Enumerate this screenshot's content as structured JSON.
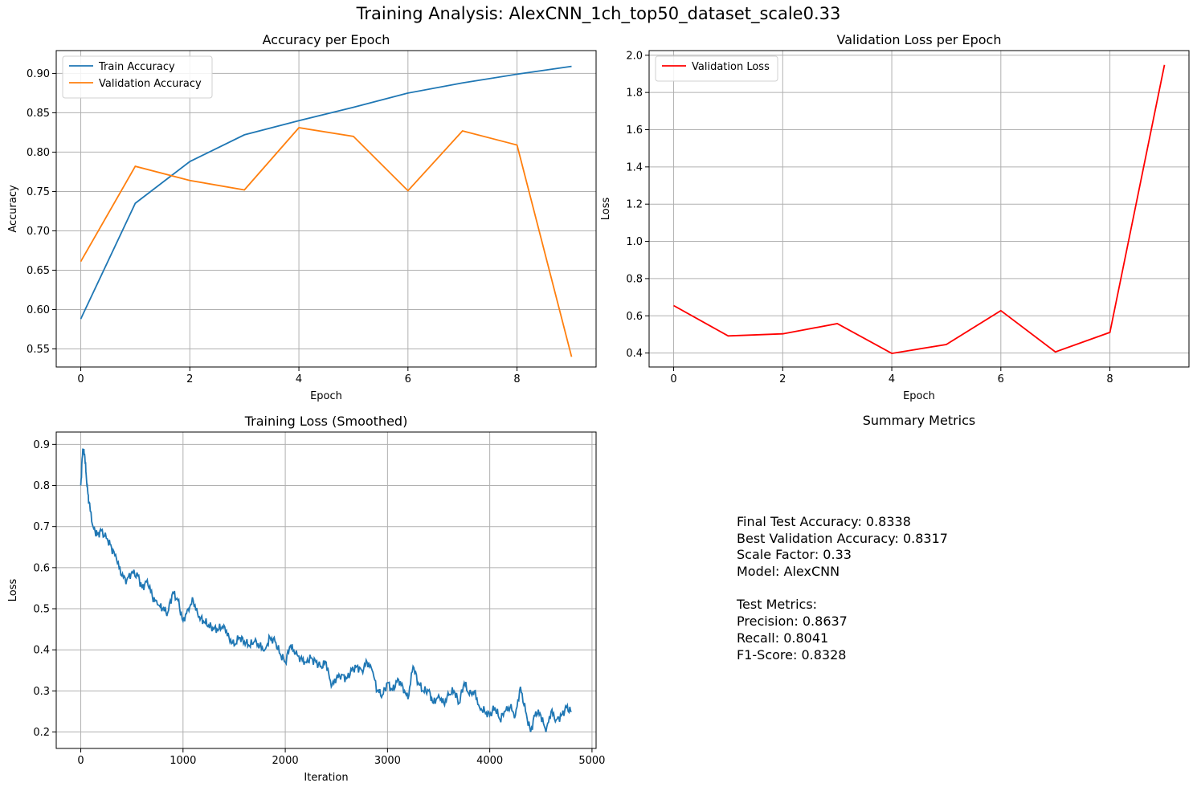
{
  "figure": {
    "title": "Training Analysis: AlexCNN_1ch_top50_dataset_scale0.33"
  },
  "summary": {
    "title": "Summary Metrics",
    "lines": [
      "Final Test Accuracy: 0.8338",
      "Best Validation Accuracy: 0.8317",
      "Scale Factor: 0.33",
      "Model: AlexCNN",
      "",
      "Test Metrics:",
      "Precision: 0.8637",
      "Recall: 0.8041",
      "F1-Score: 0.8328"
    ]
  },
  "chart_data": [
    {
      "type": "line",
      "title": "Accuracy per Epoch",
      "xlabel": "Epoch",
      "ylabel": "Accuracy",
      "xlim": [
        -0.45,
        9.45
      ],
      "ylim": [
        0.527,
        0.929
      ],
      "xticks": [
        0,
        2,
        4,
        6,
        8
      ],
      "yticks": [
        0.55,
        0.6,
        0.65,
        0.7,
        0.75,
        0.8,
        0.85,
        0.9
      ],
      "ytick_labels": [
        "0.55",
        "0.60",
        "0.65",
        "0.70",
        "0.75",
        "0.80",
        "0.85",
        "0.90"
      ],
      "grid": true,
      "legend": "upper-left",
      "x": [
        0,
        1,
        2,
        3,
        4,
        5,
        6,
        7,
        8,
        9
      ],
      "series": [
        {
          "name": "Train Accuracy",
          "color": "#1f77b4",
          "values": [
            0.588,
            0.735,
            0.788,
            0.822,
            0.84,
            0.857,
            0.875,
            0.888,
            0.899,
            0.909
          ]
        },
        {
          "name": "Validation Accuracy",
          "color": "#ff7f0e",
          "values": [
            0.661,
            0.782,
            0.764,
            0.752,
            0.831,
            0.82,
            0.751,
            0.827,
            0.809,
            0.54
          ]
        }
      ]
    },
    {
      "type": "line",
      "title": "Validation Loss per Epoch",
      "xlabel": "Epoch",
      "ylabel": "Loss",
      "xlim": [
        -0.45,
        9.45
      ],
      "ylim": [
        0.325,
        2.025
      ],
      "xticks": [
        0,
        2,
        4,
        6,
        8
      ],
      "yticks": [
        0.4,
        0.6,
        0.8,
        1.0,
        1.2,
        1.4,
        1.6,
        1.8,
        2.0
      ],
      "ytick_labels": [
        "0.4",
        "0.6",
        "0.8",
        "1.0",
        "1.2",
        "1.4",
        "1.6",
        "1.8",
        "2.0"
      ],
      "grid": true,
      "legend": "upper-left",
      "x": [
        0,
        1,
        2,
        3,
        4,
        5,
        6,
        7,
        8,
        9
      ],
      "series": [
        {
          "name": "Validation Loss",
          "color": "#ff0000",
          "values": [
            0.655,
            0.492,
            0.503,
            0.558,
            0.398,
            0.446,
            0.628,
            0.406,
            0.511,
            1.948
          ]
        }
      ]
    },
    {
      "type": "line",
      "title": "Training Loss (Smoothed)",
      "xlabel": "Iteration",
      "ylabel": "Loss",
      "xlim": [
        -240,
        5040
      ],
      "ylim": [
        0.16,
        0.93
      ],
      "xticks": [
        0,
        1000,
        2000,
        3000,
        4000,
        5000
      ],
      "yticks": [
        0.2,
        0.3,
        0.4,
        0.5,
        0.6,
        0.7,
        0.8,
        0.9
      ],
      "ytick_labels": [
        "0.2",
        "0.3",
        "0.4",
        "0.5",
        "0.6",
        "0.7",
        "0.8",
        "0.9"
      ],
      "grid": true,
      "color": "#1f77b4",
      "x": [
        0,
        20,
        40,
        60,
        80,
        120,
        160,
        200,
        260,
        300,
        350,
        400,
        450,
        500,
        560,
        600,
        650,
        700,
        750,
        800,
        850,
        900,
        950,
        1000,
        1050,
        1100,
        1150,
        1200,
        1250,
        1300,
        1350,
        1400,
        1450,
        1500,
        1550,
        1600,
        1650,
        1700,
        1750,
        1800,
        1850,
        1900,
        1950,
        2000,
        2050,
        2100,
        2150,
        2200,
        2250,
        2300,
        2350,
        2400,
        2450,
        2500,
        2550,
        2600,
        2650,
        2700,
        2750,
        2800,
        2850,
        2900,
        2950,
        3000,
        3050,
        3100,
        3150,
        3200,
        3250,
        3300,
        3350,
        3400,
        3450,
        3500,
        3550,
        3600,
        3650,
        3700,
        3750,
        3800,
        3850,
        3900,
        3950,
        4000,
        4050,
        4100,
        4150,
        4200,
        4250,
        4300,
        4350,
        4400,
        4450,
        4500,
        4550,
        4600,
        4650,
        4700,
        4750,
        4800
      ],
      "y": [
        0.8,
        0.89,
        0.87,
        0.8,
        0.76,
        0.7,
        0.68,
        0.69,
        0.67,
        0.65,
        0.62,
        0.58,
        0.57,
        0.59,
        0.58,
        0.55,
        0.57,
        0.53,
        0.51,
        0.5,
        0.49,
        0.54,
        0.52,
        0.47,
        0.5,
        0.52,
        0.48,
        0.47,
        0.46,
        0.45,
        0.45,
        0.46,
        0.43,
        0.41,
        0.43,
        0.42,
        0.41,
        0.42,
        0.41,
        0.4,
        0.43,
        0.42,
        0.39,
        0.37,
        0.41,
        0.39,
        0.38,
        0.37,
        0.38,
        0.37,
        0.36,
        0.37,
        0.31,
        0.33,
        0.34,
        0.33,
        0.35,
        0.36,
        0.35,
        0.37,
        0.35,
        0.3,
        0.29,
        0.32,
        0.3,
        0.33,
        0.31,
        0.28,
        0.36,
        0.32,
        0.3,
        0.3,
        0.27,
        0.29,
        0.27,
        0.29,
        0.3,
        0.27,
        0.32,
        0.29,
        0.3,
        0.26,
        0.25,
        0.24,
        0.26,
        0.23,
        0.25,
        0.26,
        0.24,
        0.31,
        0.25,
        0.2,
        0.25,
        0.24,
        0.2,
        0.25,
        0.23,
        0.24,
        0.26,
        0.25
      ]
    }
  ]
}
